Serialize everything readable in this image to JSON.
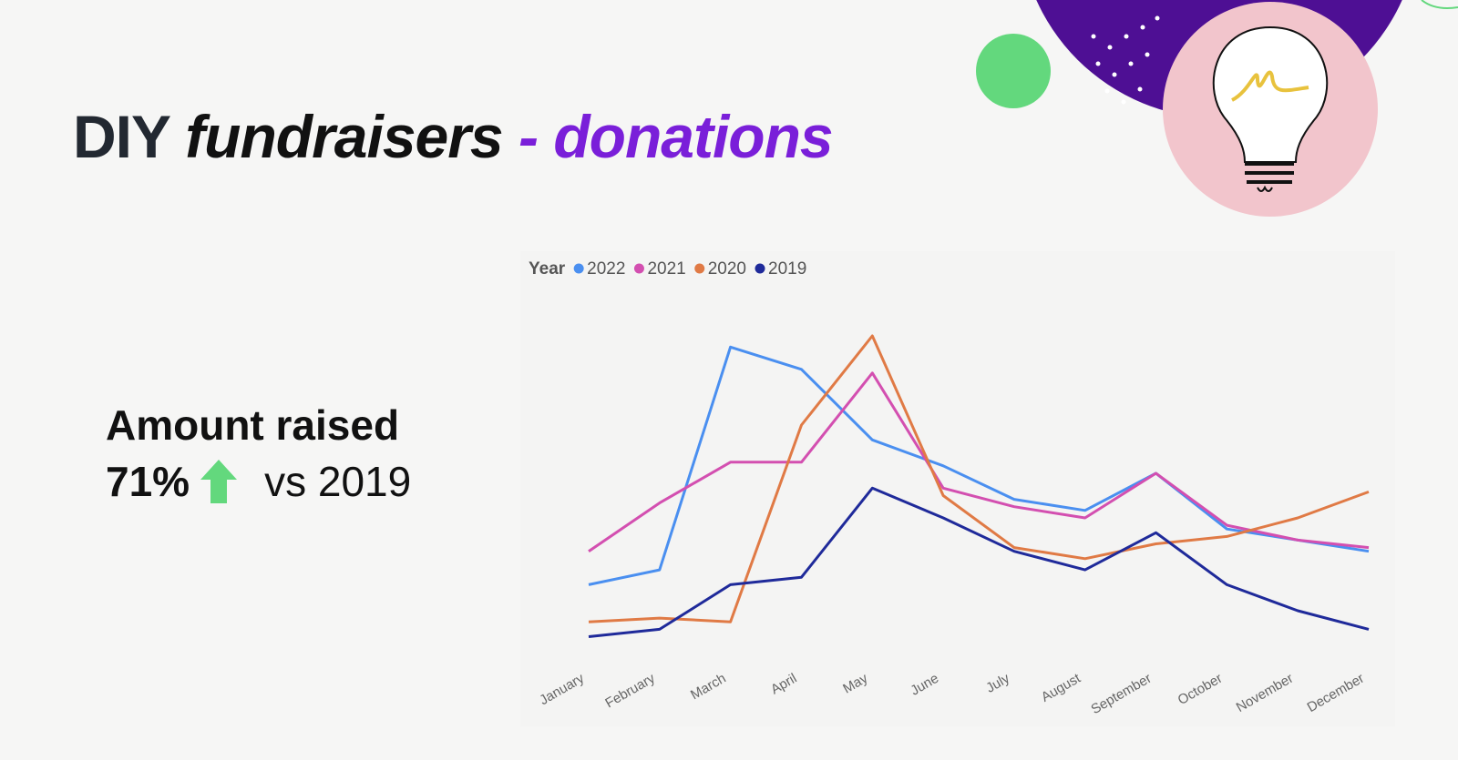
{
  "header": {
    "title_plain": "DIY",
    "title_italic": "fundraisers",
    "title_accent": "- donations"
  },
  "kpi": {
    "label": "Amount raised",
    "change": "71%",
    "comparison": "vs 2019"
  },
  "chart_data": {
    "type": "line",
    "legend_title": "Year",
    "categories": [
      "January",
      "February",
      "March",
      "April",
      "May",
      "June",
      "July",
      "August",
      "September",
      "October",
      "November",
      "December"
    ],
    "series": [
      {
        "name": "2022",
        "color": "#4a8ff0",
        "values": [
          20,
          24,
          84,
          78,
          59,
          52,
          43,
          40,
          50,
          35,
          32,
          29
        ]
      },
      {
        "name": "2021",
        "color": "#d34fb0",
        "values": [
          29,
          42,
          53,
          53,
          77,
          46,
          41,
          38,
          50,
          36,
          32,
          30
        ]
      },
      {
        "name": "2020",
        "color": "#e07a45",
        "values": [
          10,
          11,
          10,
          63,
          87,
          44,
          30,
          27,
          31,
          33,
          38,
          45
        ]
      },
      {
        "name": "2019",
        "color": "#1f2a9a",
        "values": [
          6,
          8,
          20,
          22,
          46,
          38,
          29,
          24,
          34,
          20,
          13,
          8
        ]
      }
    ],
    "ylim": [
      0,
      100
    ],
    "grid": false
  }
}
